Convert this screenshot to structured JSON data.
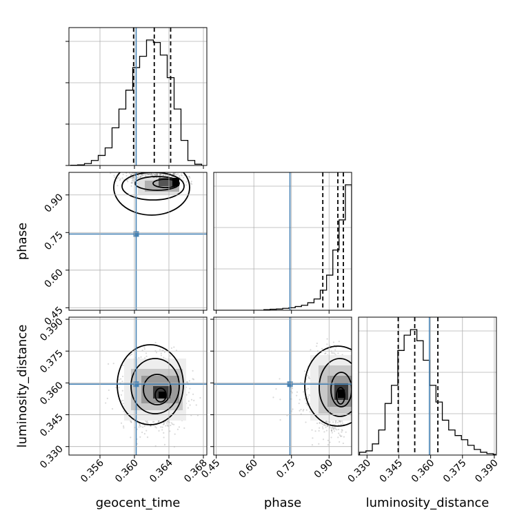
{
  "colors": {
    "truth": "#4682b4",
    "line": "#000000",
    "grid": "#b0b0b0",
    "background": "#ffffff"
  },
  "chart_data": {
    "type": "corner",
    "parameters": [
      "geocent_time",
      "phase",
      "luminosity_distance"
    ],
    "axis_labels": {
      "geocent_time": "geocent_time",
      "phase": "phase",
      "luminosity_distance": "luminosity_distance"
    },
    "ranges": {
      "geocent_time": [
        0.3524,
        0.3684
      ],
      "phase": [
        0.44,
        0.99
      ],
      "luminosity_distance": [
        0.326,
        0.391
      ]
    },
    "ticks": {
      "geocent_time": {
        "values": [
          0.356,
          0.36,
          0.364,
          0.368
        ],
        "labels": [
          "0.356",
          "0.360",
          "0.364",
          "0.368"
        ]
      },
      "phase": {
        "values": [
          0.45,
          0.6,
          0.75,
          0.9
        ],
        "labels": [
          "0.45",
          "0.60",
          "0.75",
          "0.90"
        ]
      },
      "luminosity_distance": {
        "values": [
          0.33,
          0.345,
          0.36,
          0.375,
          0.39
        ],
        "labels": [
          "0.330",
          "0.345",
          "0.360",
          "0.375",
          "0.390"
        ]
      }
    },
    "truths": {
      "geocent_time": 0.3602,
      "phase": 0.744,
      "luminosity_distance": 0.3594
    },
    "quantiles": {
      "geocent_time": [
        0.3599,
        0.3623,
        0.3642
      ],
      "phase": [
        0.875,
        0.935,
        0.957
      ],
      "luminosity_distance": [
        0.3447,
        0.3525,
        0.3634
      ]
    },
    "histograms": {
      "geocent_time": {
        "edges": [
          0.3526,
          0.3534,
          0.3542,
          0.355,
          0.3558,
          0.3566,
          0.3574,
          0.3582,
          0.359,
          0.3598,
          0.3606,
          0.3614,
          0.3622,
          0.363,
          0.3638,
          0.3646,
          0.3654,
          0.3662,
          0.367,
          0.3678
        ],
        "counts": [
          0.2,
          0.5,
          1.5,
          4,
          8,
          14,
          30,
          45,
          60,
          78,
          87,
          100,
          98,
          88,
          70,
          45,
          20,
          4,
          1
        ]
      },
      "phase": {
        "edges": [
          0.44,
          0.465,
          0.49,
          0.515,
          0.54,
          0.565,
          0.59,
          0.615,
          0.64,
          0.665,
          0.69,
          0.715,
          0.74,
          0.765,
          0.79,
          0.815,
          0.84,
          0.865,
          0.89,
          0.915,
          0.94,
          0.965,
          0.99
        ],
        "counts": [
          0,
          0,
          0,
          0,
          0,
          0,
          0,
          0,
          0.5,
          0.8,
          1,
          1.5,
          2,
          3,
          4,
          6,
          9,
          16,
          28,
          48,
          72,
          100
        ]
      },
      "luminosity_distance": {
        "edges": [
          0.3265,
          0.3295,
          0.3325,
          0.3355,
          0.3385,
          0.3415,
          0.3445,
          0.3475,
          0.3505,
          0.3535,
          0.3565,
          0.3595,
          0.3625,
          0.3655,
          0.3685,
          0.3715,
          0.3745,
          0.3775,
          0.3805,
          0.3835,
          0.3865,
          0.3895,
          0.3905
        ],
        "counts": [
          2,
          3,
          8,
          18,
          37,
          50,
          75,
          86,
          90,
          82,
          68,
          50,
          38,
          25,
          18,
          14,
          11,
          7,
          4,
          2,
          1,
          0.5
        ]
      }
    },
    "density_peak": {
      "phase_vs_geocent_time": {
        "x": 0.3632,
        "y": 0.95
      },
      "luminosity_distance_vs_geocent_time": {
        "x": 0.3627,
        "y": 0.3535
      },
      "luminosity_distance_vs_phase": {
        "x": 0.955,
        "y": 0.3535
      }
    },
    "grid": true,
    "legend": "none"
  }
}
